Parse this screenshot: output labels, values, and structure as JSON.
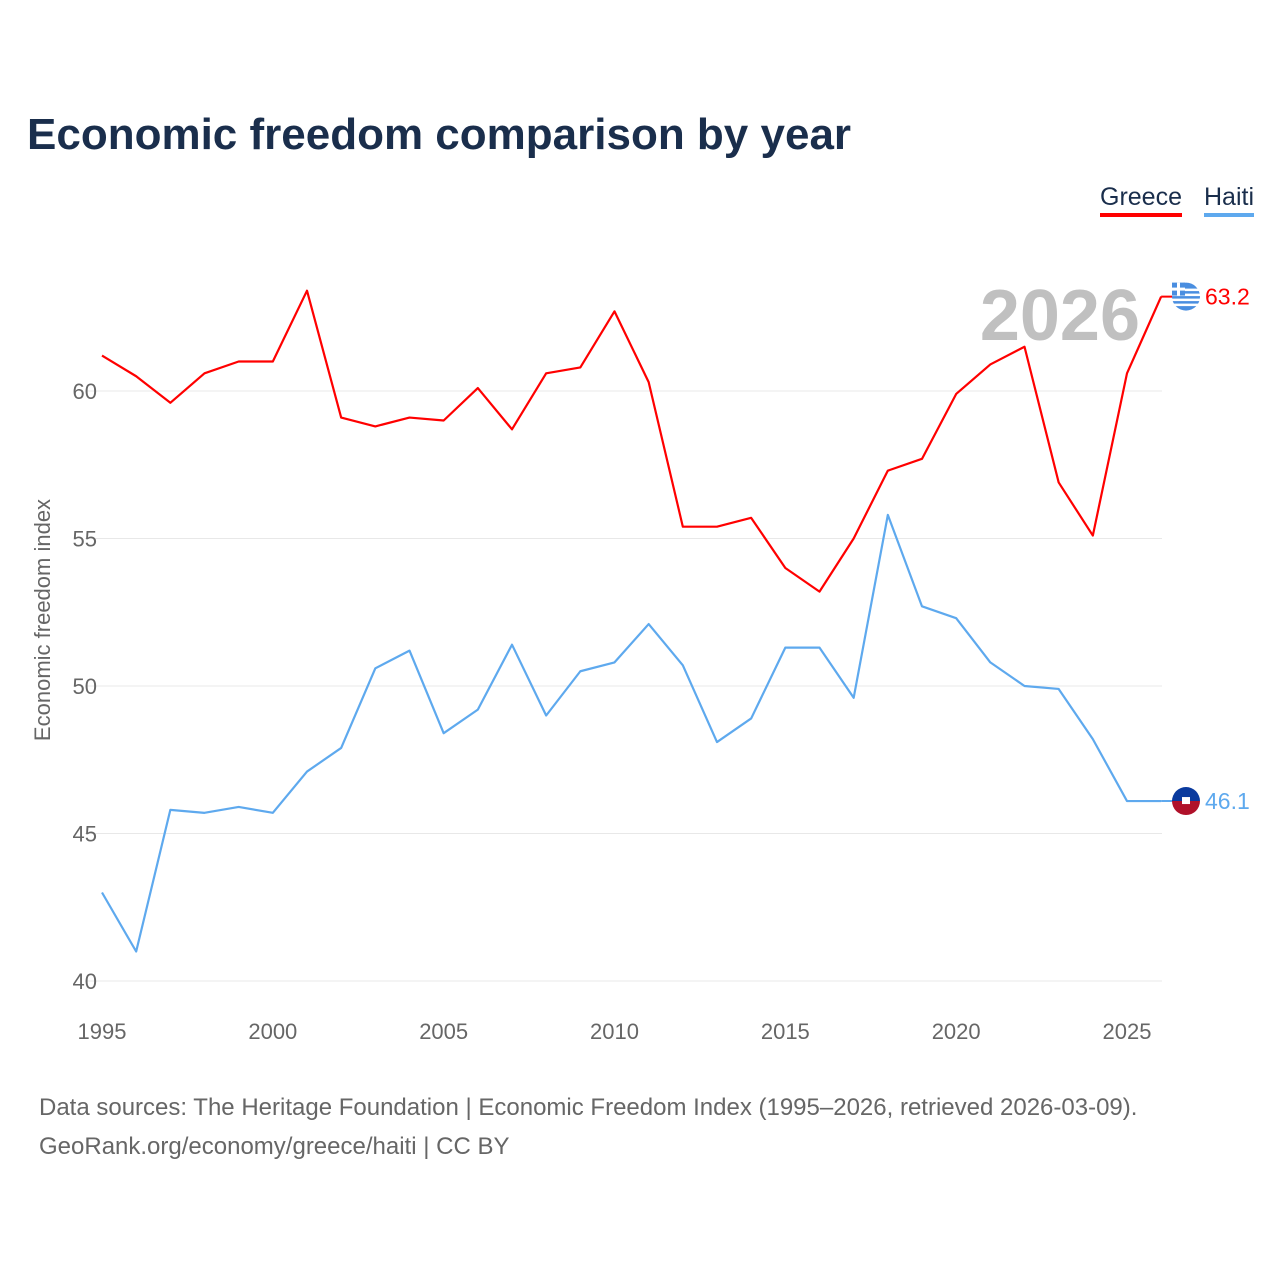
{
  "title": "Economic freedom comparison by year",
  "legend": [
    {
      "label": "Greece",
      "color": "#ff0000"
    },
    {
      "label": "Haiti",
      "color": "#5ea9ee"
    }
  ],
  "year_watermark": "2026",
  "footer": {
    "line1": "Data sources: The Heritage Foundation | Economic Freedom Index (1995–2026, retrieved 2026-03-09).",
    "line2": "GeoRank.org/economy/greece/haiti | CC BY"
  },
  "chart_data": {
    "type": "line",
    "title": "Economic freedom comparison by year",
    "xlabel": "",
    "ylabel": "Economic freedom index",
    "ylim": [
      40,
      65
    ],
    "xlim": [
      1995,
      2026
    ],
    "yticks": [
      40,
      45,
      50,
      55,
      60
    ],
    "xticks": [
      1995,
      2000,
      2005,
      2010,
      2015,
      2020,
      2025
    ],
    "grid": true,
    "legend_position": "top-right",
    "x": [
      1995,
      1996,
      1997,
      1998,
      1999,
      2000,
      2001,
      2002,
      2003,
      2004,
      2005,
      2006,
      2007,
      2008,
      2009,
      2010,
      2011,
      2012,
      2013,
      2014,
      2015,
      2016,
      2017,
      2018,
      2019,
      2020,
      2021,
      2022,
      2023,
      2024,
      2025,
      2026
    ],
    "series": [
      {
        "name": "Greece",
        "color": "#ff0000",
        "end_label": "63.2",
        "values": [
          61.2,
          60.5,
          59.6,
          60.6,
          61.0,
          61.0,
          63.4,
          59.1,
          58.8,
          59.1,
          59.0,
          60.1,
          58.7,
          60.6,
          60.8,
          62.7,
          60.3,
          55.4,
          55.4,
          55.7,
          54.0,
          53.2,
          55.0,
          57.3,
          57.7,
          59.9,
          60.9,
          61.5,
          56.9,
          55.1,
          60.6,
          63.2
        ]
      },
      {
        "name": "Haiti",
        "color": "#5ea9ee",
        "end_label": "46.1",
        "values": [
          43.0,
          41.0,
          45.8,
          45.7,
          45.9,
          45.7,
          47.1,
          47.9,
          50.6,
          51.2,
          48.4,
          49.2,
          51.4,
          49.0,
          50.5,
          50.8,
          52.1,
          50.7,
          48.1,
          48.9,
          51.3,
          51.3,
          49.6,
          55.8,
          52.7,
          52.3,
          50.8,
          50.0,
          49.9,
          48.2,
          46.1,
          46.1
        ]
      }
    ]
  }
}
